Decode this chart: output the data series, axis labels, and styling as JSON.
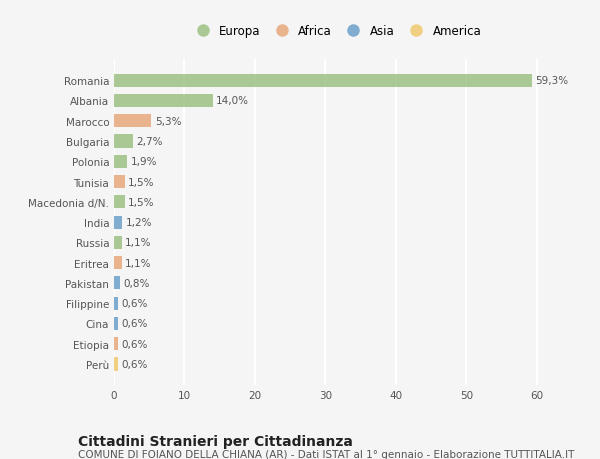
{
  "countries": [
    "Romania",
    "Albania",
    "Marocco",
    "Bulgaria",
    "Polonia",
    "Tunisia",
    "Macedonia d/N.",
    "India",
    "Russia",
    "Eritrea",
    "Pakistan",
    "Filippine",
    "Cina",
    "Etiopia",
    "Perù"
  ],
  "values": [
    59.3,
    14.0,
    5.3,
    2.7,
    1.9,
    1.5,
    1.5,
    1.2,
    1.1,
    1.1,
    0.8,
    0.6,
    0.6,
    0.6,
    0.6
  ],
  "labels": [
    "59,3%",
    "14,0%",
    "5,3%",
    "2,7%",
    "1,9%",
    "1,5%",
    "1,5%",
    "1,2%",
    "1,1%",
    "1,1%",
    "0,8%",
    "0,6%",
    "0,6%",
    "0,6%",
    "0,6%"
  ],
  "continents": [
    "Europa",
    "Europa",
    "Africa",
    "Europa",
    "Europa",
    "Africa",
    "Europa",
    "Asia",
    "Europa",
    "Africa",
    "Asia",
    "Asia",
    "Asia",
    "Africa",
    "America"
  ],
  "continent_colors": {
    "Europa": "#9dc183",
    "Africa": "#e8a87c",
    "Asia": "#6b9fc9",
    "America": "#f0c96e"
  },
  "legend_order": [
    "Europa",
    "Africa",
    "Asia",
    "America"
  ],
  "title": "Cittadini Stranieri per Cittadinanza",
  "subtitle": "COMUNE DI FOIANO DELLA CHIANA (AR) - Dati ISTAT al 1° gennaio - Elaborazione TUTTITALIA.IT",
  "xlim": [
    0,
    63
  ],
  "xticks": [
    0,
    10,
    20,
    30,
    40,
    50,
    60
  ],
  "background_color": "#f5f5f5",
  "bar_alpha": 0.85,
  "grid_color": "#ffffff",
  "title_fontsize": 10,
  "subtitle_fontsize": 7.5,
  "label_fontsize": 7.5,
  "tick_fontsize": 7.5,
  "legend_fontsize": 8.5
}
